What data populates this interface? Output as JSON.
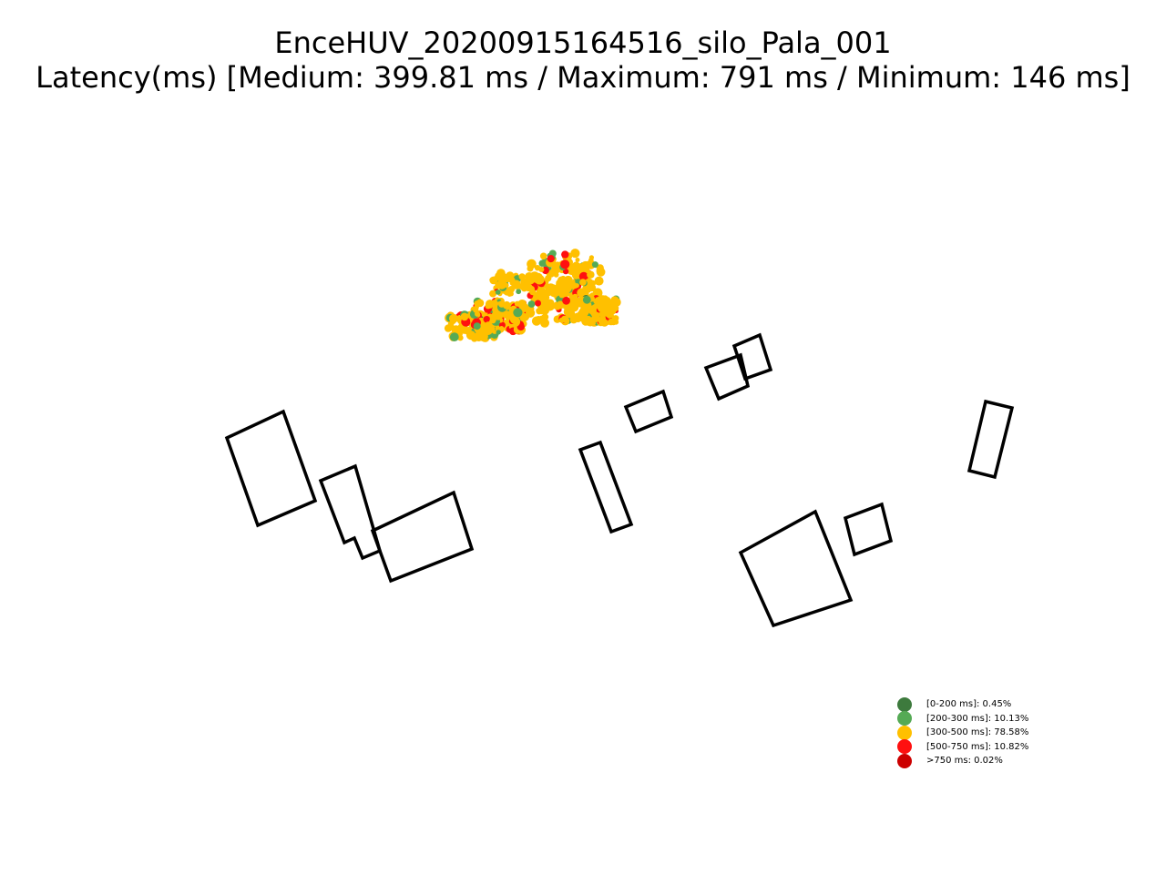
{
  "chart_data": {
    "type": "scatter",
    "title": "EnceHUV_20200915164516_silo_Pala_001",
    "subtitle": "Latency(ms) [Medium: 399.81 ms / Maximum: 791 ms / Minimum: 146 ms]",
    "xlabel": "",
    "ylabel": "",
    "axes_visible": false,
    "legend_position": "lower-right",
    "stats": {
      "medium_ms": 399.81,
      "maximum_ms": 791,
      "minimum_ms": 146
    },
    "categories": [
      {
        "label": "[0-200 ms]: 0.45%",
        "range_ms": [
          0,
          200
        ],
        "percent": 0.45,
        "color": "#3d7a3d"
      },
      {
        "label": "[200-300 ms]: 10.13%",
        "range_ms": [
          200,
          300
        ],
        "percent": 10.13,
        "color": "#55aa55"
      },
      {
        "label": "[300-500 ms]: 78.58%",
        "range_ms": [
          300,
          500
        ],
        "percent": 78.58,
        "color": "#ffc000"
      },
      {
        "label": "[500-750 ms]: 10.82%",
        "range_ms": [
          500,
          750
        ],
        "percent": 10.82,
        "color": "#ff1010"
      },
      {
        "label": ">750 ms: 0.02%",
        "range_ms": [
          750,
          null
        ],
        "percent": 0.02,
        "color": "#cc0000"
      }
    ],
    "building_count": 11
  }
}
